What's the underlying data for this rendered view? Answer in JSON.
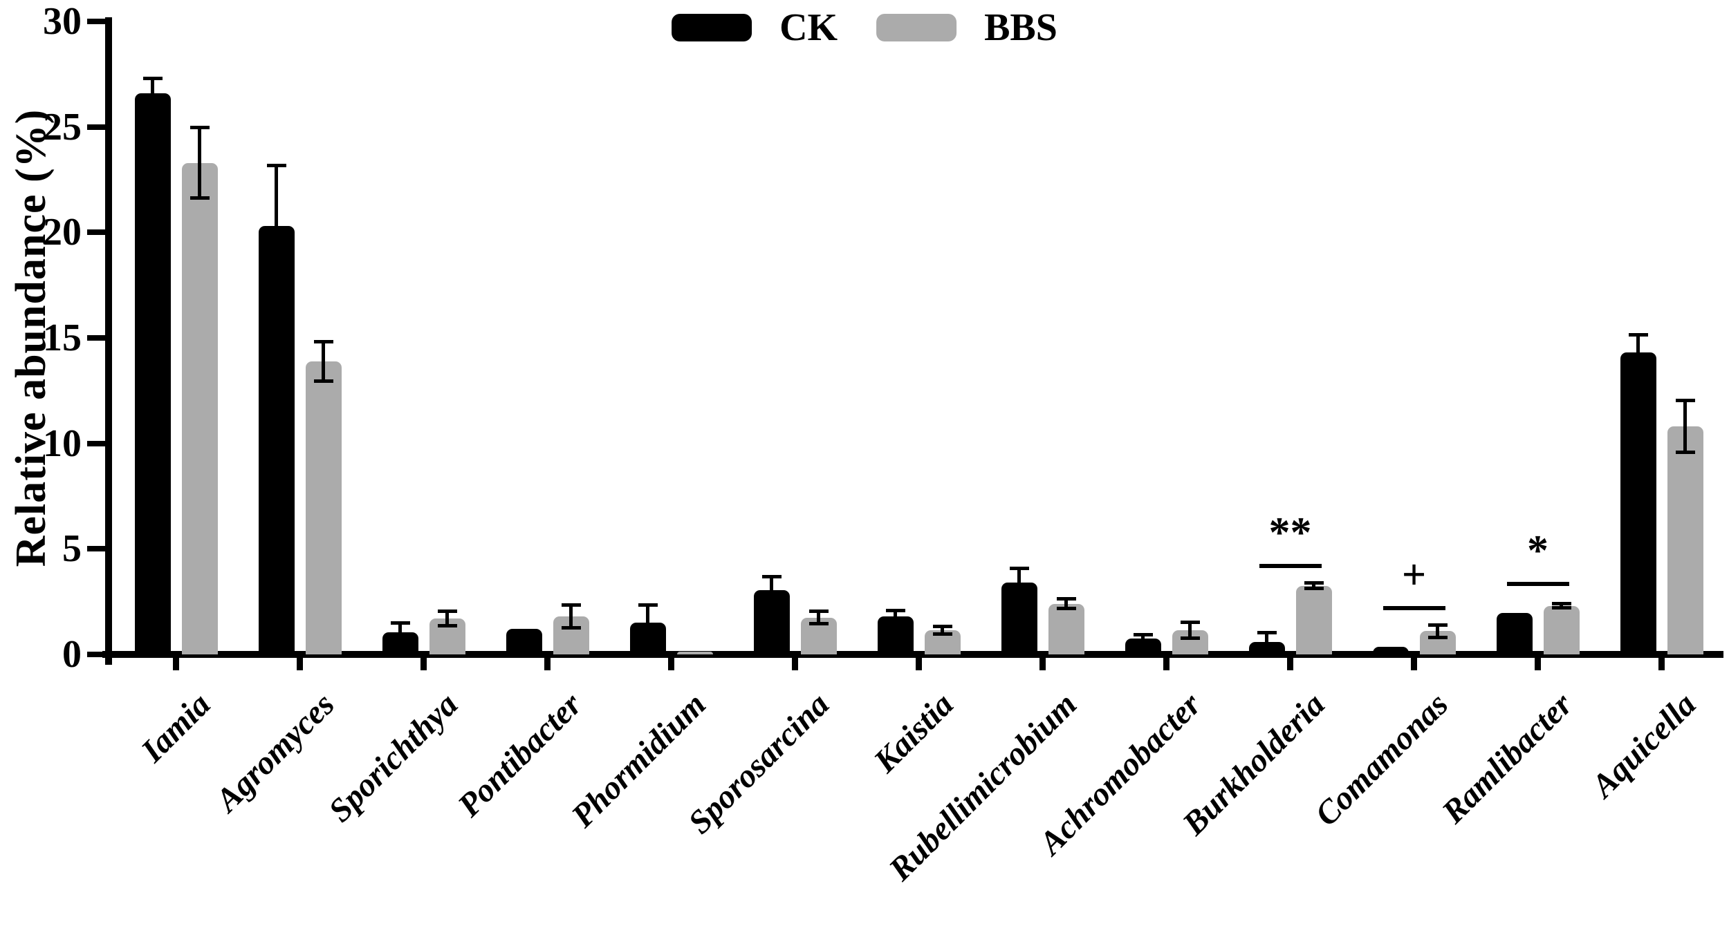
{
  "chart_data": {
    "type": "bar",
    "title": "",
    "ylabel": "Relative abundance (%)",
    "xlabel": "",
    "ylim": [
      0,
      30
    ],
    "yticks": [
      0,
      5,
      10,
      15,
      20,
      25,
      30
    ],
    "grid": false,
    "legend_position": "top-center",
    "categories": [
      "Iamia",
      "Agromyces",
      "Sporichthya",
      "Pontibacter",
      "Phormidium",
      "Sporosarcina",
      "Kaistia",
      "Rubellimicrobium",
      "Achromobacter",
      "Burkholderia",
      "Comamonas",
      "Ramlibacter",
      "Aquicella"
    ],
    "series": [
      {
        "name": "CK",
        "color": "#000000",
        "values": [
          26.6,
          20.3,
          1.05,
          1.2,
          1.5,
          3.05,
          1.8,
          3.4,
          0.75,
          0.6,
          0.35,
          1.95,
          14.3
        ],
        "errors": [
          0.7,
          2.9,
          0.45,
          0,
          0.85,
          0.65,
          0.3,
          0.7,
          0.2,
          0.45,
          0,
          0,
          0.85
        ]
      },
      {
        "name": "BBS",
        "color": "#ABABAB",
        "values": [
          23.3,
          13.9,
          1.7,
          1.8,
          0.12,
          1.75,
          1.15,
          2.4,
          1.15,
          3.25,
          1.1,
          2.3,
          10.8
        ],
        "errors": [
          1.7,
          0.95,
          0.35,
          0.55,
          0,
          0.3,
          0.2,
          0.25,
          0.4,
          0.15,
          0.3,
          0.12,
          1.25
        ]
      }
    ],
    "annotations": [
      {
        "category": "Burkholderia",
        "text": "**",
        "line_value": 4.3
      },
      {
        "category": "Comamonas",
        "text": "+",
        "line_value": 2.3
      },
      {
        "category": "Ramlibacter",
        "text": "*",
        "line_value": 3.45
      }
    ]
  }
}
